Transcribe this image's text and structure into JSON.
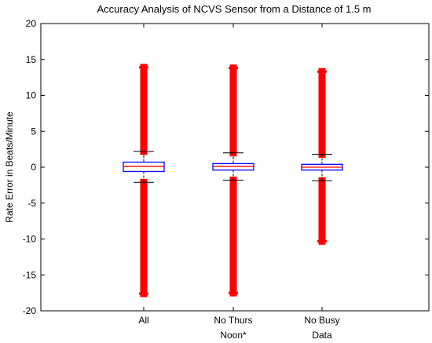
{
  "chart_data": {
    "type": "box",
    "title": "Accuracy Analysis of NCVS Sensor from a Distance of 1.5 m",
    "xlabel": "",
    "ylabel": "Rate Error in Beats/Minute",
    "ylim": [
      -20,
      20
    ],
    "yticks": [
      20,
      15,
      10,
      5,
      0,
      -5,
      -10,
      -15,
      -20
    ],
    "categories": [
      [
        "All"
      ],
      [
        "No Thurs",
        "Noon*"
      ],
      [
        "No Busy",
        "Data"
      ]
    ],
    "boxes": [
      {
        "q1": -0.6,
        "median": 0.1,
        "q3": 0.7,
        "whisker_low": -2.1,
        "whisker_high": 2.2,
        "outlier_low_range": [
          -17.6,
          -2.1
        ],
        "outlier_high_range": [
          2.2,
          13.9
        ]
      },
      {
        "q1": -0.4,
        "median": 0.1,
        "q3": 0.5,
        "whisker_low": -1.8,
        "whisker_high": 2.0,
        "outlier_low_range": [
          -17.5,
          -1.8
        ],
        "outlier_high_range": [
          2.0,
          13.8
        ]
      },
      {
        "q1": -0.4,
        "median": 0.0,
        "q3": 0.4,
        "whisker_low": -1.9,
        "whisker_high": 1.8,
        "outlier_low_range": [
          -10.3,
          -1.9
        ],
        "outlier_high_range": [
          1.8,
          13.3
        ]
      }
    ],
    "colors": {
      "box": "#0000ff",
      "median": "#ff0000",
      "outlier": "#ff0000",
      "whisker": "#000000",
      "axis": "#000000"
    },
    "grid": false,
    "legend": "none"
  }
}
